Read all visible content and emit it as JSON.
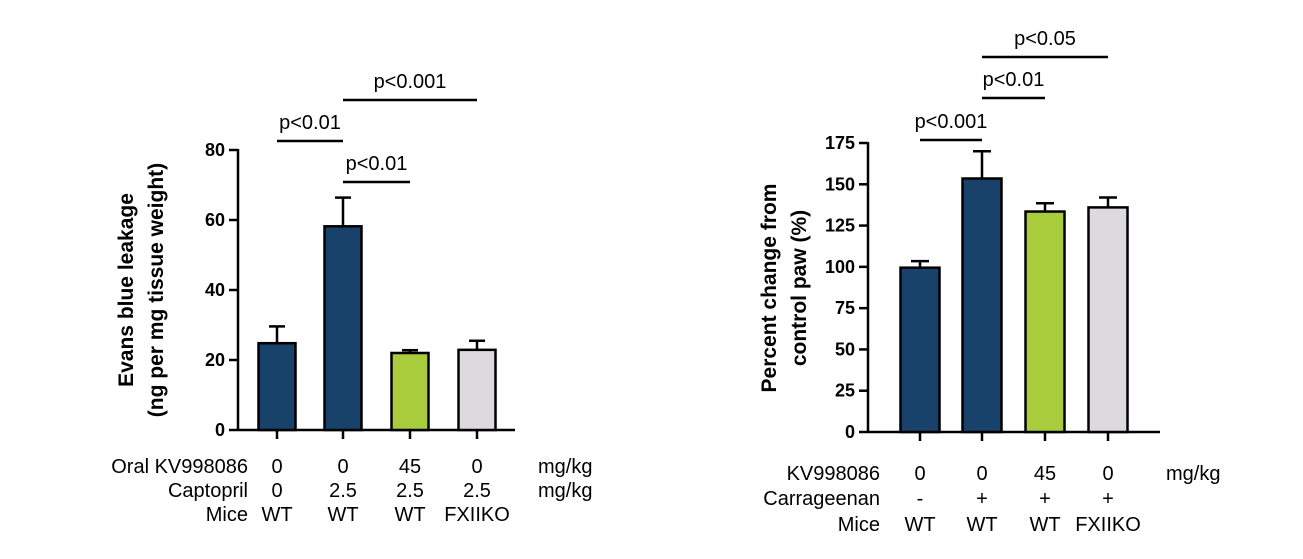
{
  "chart_data": [
    {
      "type": "bar",
      "ylabel_lines": [
        "Evans blue leakage",
        "(ng per mg tissue weight)"
      ],
      "ylim": [
        0,
        80
      ],
      "yticks": [
        0,
        20,
        40,
        60,
        80
      ],
      "values": [
        24.8,
        58.2,
        22.0,
        22.9
      ],
      "errors": [
        4.8,
        8.2,
        0.8,
        2.6
      ],
      "colors": [
        "#18426a",
        "#18426a",
        "#a8cc3c",
        "#dcdadf"
      ],
      "conditions": [
        {
          "label": "Oral KV998086",
          "values": [
            "0",
            "0",
            "45",
            "0"
          ],
          "unit": "mg/kg"
        },
        {
          "label": "Captopril",
          "values": [
            "0",
            "2.5",
            "2.5",
            "2.5"
          ],
          "unit": "mg/kg"
        },
        {
          "label": "Mice",
          "values": [
            "WT",
            "WT",
            "WT",
            "FXIIKO"
          ],
          "unit": ""
        }
      ],
      "comparisons": [
        {
          "from": 0,
          "to": 1,
          "label": "p<0.01"
        },
        {
          "from": 1,
          "to": 2,
          "label": "p<0.01"
        },
        {
          "from": 1,
          "to": 3,
          "label": "p<0.001"
        }
      ]
    },
    {
      "type": "bar",
      "ylabel_lines": [
        "Percent change from",
        "control paw (%)"
      ],
      "ylim": [
        0,
        175
      ],
      "yticks": [
        0,
        25,
        50,
        75,
        100,
        125,
        150,
        175
      ],
      "values": [
        99.5,
        153.5,
        133.5,
        136.0
      ],
      "errors": [
        4.0,
        16.5,
        5.0,
        6.0
      ],
      "colors": [
        "#18426a",
        "#18426a",
        "#a8cc3c",
        "#dcdadf"
      ],
      "conditions": [
        {
          "label": "KV998086",
          "values": [
            "0",
            "0",
            "45",
            "0"
          ],
          "unit": "mg/kg"
        },
        {
          "label": "Carrageenan",
          "values": [
            "-",
            "+",
            "+",
            "+"
          ],
          "unit": ""
        },
        {
          "label": "Mice",
          "values": [
            "WT",
            "WT",
            "WT",
            "FXIIKO"
          ],
          "unit": ""
        }
      ],
      "comparisons": [
        {
          "from": 0,
          "to": 1,
          "label": "p<0.001"
        },
        {
          "from": 1,
          "to": 2,
          "label": "p<0.01"
        },
        {
          "from": 1,
          "to": 3,
          "label": "p<0.05"
        }
      ]
    }
  ]
}
